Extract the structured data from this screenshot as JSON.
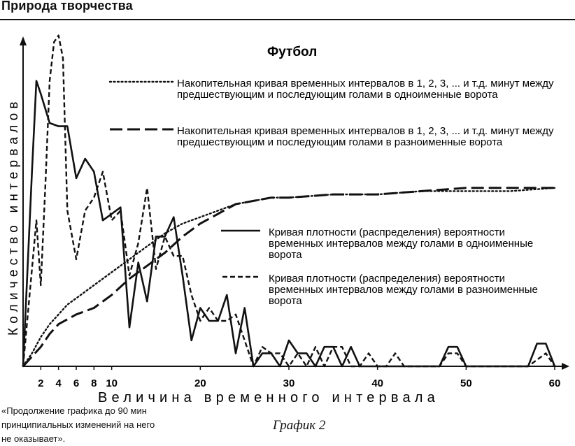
{
  "header": {
    "title": "Природа творчества"
  },
  "caption": "График 2",
  "footnote": [
    "«Продолжение графика до 90 мин",
    "принципиальных изменений на него",
    "не оказывает»."
  ],
  "chart_data": {
    "type": "line",
    "title": "Футбол",
    "xlabel": "Величина временного интервала",
    "ylabel": "Количество интервалов",
    "xlim": [
      0,
      60
    ],
    "ylim": [
      0,
      100
    ],
    "x_ticks": [
      2,
      4,
      6,
      8,
      10,
      20,
      30,
      40,
      50,
      60
    ],
    "grid": false,
    "legend_position": "right",
    "series": [
      {
        "name": "Накопительная кривая временных интервалов в 1, 2, 3, ... и т.д. минут между предшествующим и последующим голами в одноименные ворота",
        "style": "dotted",
        "x": [
          0,
          1,
          2,
          3,
          4,
          5,
          6,
          8,
          10,
          12,
          14,
          16,
          18,
          20,
          22,
          24,
          26,
          28,
          30,
          35,
          40,
          45,
          50,
          55,
          60
        ],
        "y": [
          0,
          4,
          9,
          13,
          16,
          19,
          21,
          25,
          29,
          33,
          37,
          41,
          44,
          46,
          48,
          50,
          51,
          52,
          52,
          53,
          53,
          54,
          54,
          54,
          55
        ]
      },
      {
        "name": "Накопительная кривая временных интервалов в 1, 2, 3, ... и т.д. минут между предшествующим и последующим голами в разноименные ворота",
        "style": "long-dash",
        "x": [
          0,
          1,
          2,
          3,
          4,
          6,
          8,
          10,
          12,
          14,
          16,
          18,
          20,
          22,
          24,
          26,
          28,
          30,
          35,
          40,
          45,
          50,
          55,
          60
        ],
        "y": [
          0,
          3,
          6,
          10,
          13,
          16,
          18,
          22,
          27,
          31,
          35,
          40,
          44,
          47,
          50,
          51,
          52,
          52,
          53,
          53,
          54,
          55,
          55,
          55
        ]
      },
      {
        "name": "Кривая плотности (распределения) вероятности временных интервалов между голами в одноименные ворота",
        "style": "solid",
        "x": [
          0,
          1,
          1.5,
          2,
          3,
          4,
          5,
          6,
          7,
          8,
          9,
          10,
          11,
          12,
          13,
          14,
          15,
          16,
          17,
          18,
          19,
          20,
          21,
          22,
          23,
          24,
          25,
          26,
          27,
          28,
          29,
          30,
          31,
          32,
          33,
          34,
          35,
          36,
          37,
          38,
          39,
          40,
          41,
          42,
          43,
          44,
          45,
          46,
          47,
          48,
          49,
          50,
          51,
          52,
          53,
          54,
          55,
          56,
          57,
          58,
          59,
          60
        ],
        "y": [
          0,
          60,
          88,
          84,
          75,
          74,
          74,
          58,
          64,
          60,
          45,
          47,
          49,
          12,
          32,
          20,
          40,
          40,
          46,
          28,
          8,
          18,
          14,
          14,
          22,
          4,
          18,
          0,
          4,
          4,
          0,
          8,
          4,
          4,
          0,
          6,
          6,
          0,
          6,
          0,
          0,
          0,
          0,
          0,
          0,
          0,
          0,
          0,
          0,
          6,
          6,
          0,
          0,
          0,
          0,
          0,
          0,
          0,
          0,
          7,
          7,
          0
        ]
      },
      {
        "name": "Кривая плотности (распределения) вероятности временных интервалов между голами в разноименные ворота",
        "style": "dashed",
        "x": [
          0,
          1,
          1.5,
          2,
          2.5,
          3,
          3.5,
          4,
          4.5,
          5,
          6,
          7,
          8,
          9,
          10,
          11,
          12,
          13,
          14,
          15,
          16,
          17,
          18,
          19,
          20,
          21,
          22,
          23,
          24,
          25,
          26,
          27,
          28,
          29,
          30,
          31,
          32,
          33,
          34,
          35,
          36,
          37,
          38,
          39,
          40,
          41,
          42,
          43,
          44,
          45,
          46,
          47,
          48,
          49,
          50,
          51,
          52,
          53,
          54,
          55,
          56,
          57,
          58,
          59,
          60
        ],
        "y": [
          0,
          30,
          45,
          25,
          55,
          88,
          100,
          102,
          95,
          48,
          33,
          48,
          52,
          60,
          45,
          48,
          28,
          38,
          55,
          30,
          40,
          34,
          34,
          22,
          14,
          18,
          14,
          14,
          16,
          8,
          0,
          6,
          4,
          4,
          0,
          4,
          0,
          6,
          0,
          6,
          6,
          0,
          0,
          4,
          0,
          0,
          4,
          0,
          0,
          0,
          0,
          0,
          4,
          4,
          0,
          0,
          0,
          0,
          0,
          0,
          0,
          0,
          2,
          4,
          0
        ]
      }
    ]
  }
}
